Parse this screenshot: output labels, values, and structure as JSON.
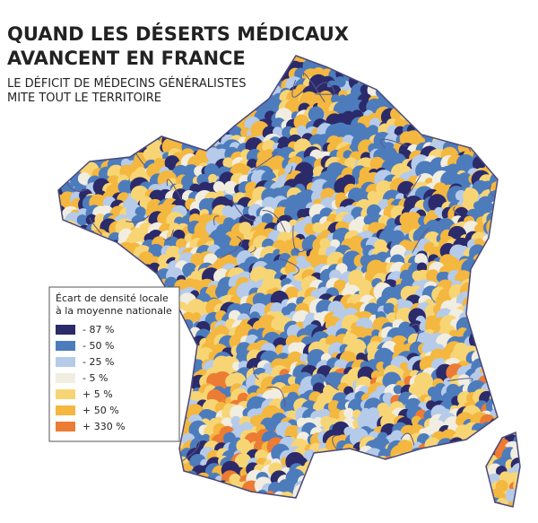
{
  "header": {
    "title": [
      "QUAND LES DÉSERTS MÉDICAUX",
      "AVANCENT EN FRANCE"
    ],
    "subtitle": [
      "LE DÉFICIT DE MÉDECINS GÉNÉRALISTES",
      "MITE TOUT LE TERRITOIRE"
    ]
  },
  "legend": {
    "title": [
      "Écart de densité locale",
      "à la moyenne nationale"
    ],
    "items": [
      {
        "label": "- 87 %",
        "color": "#2b2a6b"
      },
      {
        "label": "- 50 %",
        "color": "#4d7cbd"
      },
      {
        "label": "- 25 %",
        "color": "#b5cbe9"
      },
      {
        "label": "- 5 %",
        "color": "#f1ede0"
      },
      {
        "label": "+ 5 %",
        "color": "#f8d574"
      },
      {
        "label": "+ 50 %",
        "color": "#f4b73f"
      },
      {
        "label": "+ 330 %",
        "color": "#ec7b33"
      }
    ]
  }
}
